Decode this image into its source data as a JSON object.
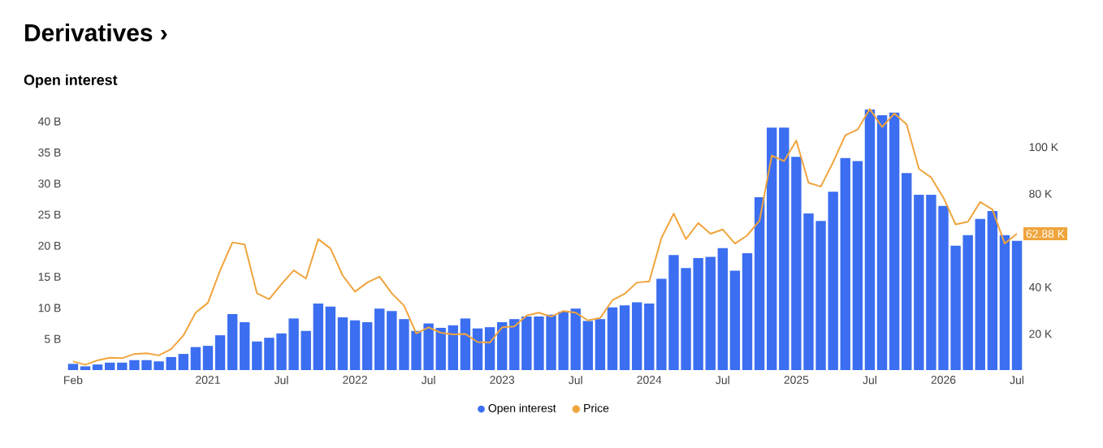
{
  "chart_data": {
    "type": "bar",
    "title": "Derivatives ›",
    "subtitle": "Open interest",
    "categories": [
      "Feb",
      null,
      null,
      null,
      null,
      null,
      null,
      null,
      null,
      null,
      null,
      "2021",
      null,
      null,
      null,
      null,
      null,
      "Jul",
      null,
      null,
      null,
      null,
      null,
      "2022",
      null,
      null,
      null,
      null,
      null,
      "Jul",
      null,
      null,
      null,
      null,
      null,
      "2023",
      null,
      null,
      null,
      null,
      null,
      "Jul",
      null,
      null,
      null,
      null,
      null,
      "2024",
      null,
      null,
      null,
      null,
      null,
      "Jul",
      null,
      null,
      null,
      null,
      null,
      "2025",
      null,
      null,
      null,
      null,
      null,
      "Jul",
      null,
      null,
      null,
      null,
      null,
      "2026",
      null,
      null,
      null,
      null,
      null,
      "Jul"
    ],
    "series": [
      {
        "name": "Open interest",
        "color": "#3b6ef0",
        "values": [
          1.0,
          0.6,
          0.9,
          1.2,
          1.2,
          1.6,
          1.6,
          1.4,
          2.1,
          2.6,
          3.7,
          3.9,
          5.6,
          9.0,
          7.7,
          4.6,
          5.2,
          5.9,
          8.3,
          6.3,
          10.7,
          10.2,
          8.5,
          8.0,
          7.7,
          9.9,
          9.5,
          8.2,
          6.3,
          7.5,
          6.8,
          7.2,
          8.3,
          6.7,
          6.9,
          7.7,
          8.2,
          8.6,
          8.6,
          8.9,
          9.4,
          9.9,
          7.9,
          8.2,
          10.1,
          10.4,
          10.9,
          10.7,
          14.7,
          18.5,
          16.4,
          18.0,
          18.2,
          19.6,
          16.0,
          18.8,
          27.8,
          39.0,
          39.0,
          34.3,
          25.2,
          24.0,
          28.7,
          34.1,
          33.6,
          41.9,
          41.0,
          41.4,
          31.7,
          28.2,
          28.2,
          26.4,
          20.0,
          21.7,
          24.3,
          25.6,
          21.7,
          20.8
        ]
      },
      {
        "name": "Price",
        "type": "line",
        "axis": "y2",
        "color": "#f0a43c",
        "values": [
          8.2,
          6.8,
          8.7,
          9.8,
          9.6,
          11.4,
          11.7,
          10.8,
          13.5,
          19.3,
          29.1,
          33.3,
          47.2,
          59.2,
          58.3,
          37.4,
          34.9,
          41.3,
          47.2,
          43.7,
          60.6,
          56.6,
          45.0,
          38.1,
          42.0,
          44.5,
          37.4,
          32.1,
          20.2,
          22.8,
          20.5,
          19.8,
          20.0,
          16.5,
          16.3,
          22.8,
          23.2,
          27.9,
          29.1,
          27.4,
          29.8,
          29.1,
          25.8,
          26.8,
          34.4,
          37.2,
          42.0,
          42.5,
          61.1,
          71.5,
          60.6,
          67.5,
          62.9,
          64.7,
          58.7,
          62.2,
          68.5,
          96.4,
          94.0,
          102.8,
          84.7,
          83.1,
          93.5,
          105.1,
          107.5,
          116.3,
          108.6,
          114.4,
          109.7,
          90.7,
          87.0,
          78.4,
          66.9,
          68.0,
          76.5,
          73.3,
          58.7,
          62.88
        ],
        "value_labels": [
          null,
          null,
          null,
          null,
          null,
          null,
          null,
          null,
          null,
          null,
          null,
          null,
          null,
          null,
          null,
          null,
          null,
          null,
          null,
          null,
          null,
          null,
          null,
          null,
          null,
          null,
          null,
          null,
          null,
          null,
          null,
          null,
          null,
          null,
          null,
          null,
          null,
          null,
          null,
          null,
          null,
          null,
          null,
          null,
          null,
          null,
          null,
          null,
          null,
          null,
          null,
          null,
          null,
          null,
          null,
          null,
          null,
          null,
          null,
          null,
          null,
          null,
          null,
          null,
          null,
          null,
          null,
          null,
          null,
          null,
          null,
          null,
          null,
          null,
          null,
          null,
          null,
          "62.88 K"
        ]
      }
    ],
    "ylim": [
      0,
      43
    ],
    "yticks": [
      {
        "value": 5,
        "label": "5 B"
      },
      {
        "value": 10,
        "label": "10 B"
      },
      {
        "value": 15,
        "label": "15 B"
      },
      {
        "value": 20,
        "label": "20 B"
      },
      {
        "value": 25,
        "label": "25 B"
      },
      {
        "value": 30,
        "label": "30 B"
      },
      {
        "value": 35,
        "label": "35 B"
      },
      {
        "value": 40,
        "label": "40 B"
      }
    ],
    "y2lim": [
      4.5,
      119
    ],
    "y2ticks": [
      {
        "value": 20,
        "label": "20 K"
      },
      {
        "value": 40,
        "label": "40 K"
      },
      {
        "value": 80,
        "label": "80 K"
      },
      {
        "value": 100,
        "label": "100 K"
      }
    ],
    "grid": false,
    "legend": "bottom"
  }
}
